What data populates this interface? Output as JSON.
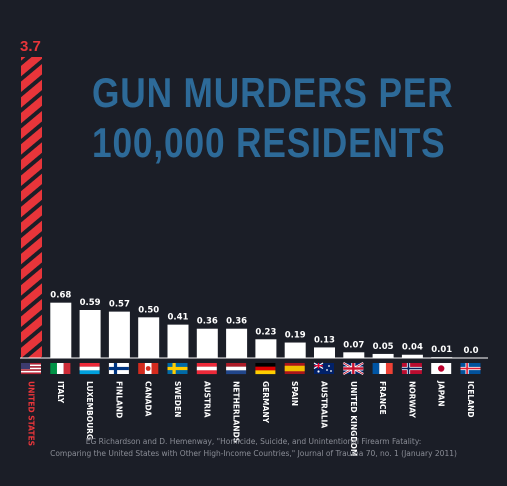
{
  "title_lines": [
    "GUN MURDERS PER",
    "100,000 RESIDENTS"
  ],
  "source_lines": [
    "EG Richardson and D. Hemenway, \"Homicide, Suicide, and Unintentional Firearm Fatality:",
    "Comparing the United States with Other High-Income Countries,\" Journal of Trauma 70, no. 1 (January 2011)"
  ],
  "colors": {
    "background": "#1b1e27",
    "title": "#2d6a98",
    "us_bar": "#e8353a",
    "bars": "#ffffff"
  },
  "chart_data": {
    "type": "bar",
    "categories": [
      "UNITED STATES",
      "ITALY",
      "LUXEMBOURG",
      "FINLAND",
      "CANADA",
      "SWEDEN",
      "AUSTRIA",
      "NETHERLANDS",
      "GERMANY",
      "SPAIN",
      "AUSTRALIA",
      "UNITED KINGDOM",
      "FRANCE",
      "NORWAY",
      "JAPAN",
      "ICELAND"
    ],
    "values": [
      3.7,
      0.68,
      0.59,
      0.57,
      0.5,
      0.41,
      0.36,
      0.36,
      0.23,
      0.19,
      0.13,
      0.07,
      0.05,
      0.04,
      0.01,
      0.0
    ],
    "value_labels": [
      "3.7",
      "0.68",
      "0.59",
      "0.57",
      "0.50",
      "0.41",
      "0.36",
      "0.36",
      "0.23",
      "0.19",
      "0.13",
      "0.07",
      "0.05",
      "0.04",
      "0.01",
      "0.0"
    ],
    "flag_icons": [
      "flag-us-icon",
      "flag-italy-icon",
      "flag-luxembourg-icon",
      "flag-finland-icon",
      "flag-canada-icon",
      "flag-sweden-icon",
      "flag-austria-icon",
      "flag-netherlands-icon",
      "flag-germany-icon",
      "flag-spain-icon",
      "flag-australia-icon",
      "flag-uk-icon",
      "flag-france-icon",
      "flag-norway-icon",
      "flag-japan-icon",
      "flag-iceland-icon"
    ],
    "title": "GUN MURDERS PER 100,000 RESIDENTS",
    "xlabel": "",
    "ylabel": "",
    "ylim": [
      0,
      3.7
    ],
    "highlight": "UNITED STATES",
    "grid": false
  }
}
